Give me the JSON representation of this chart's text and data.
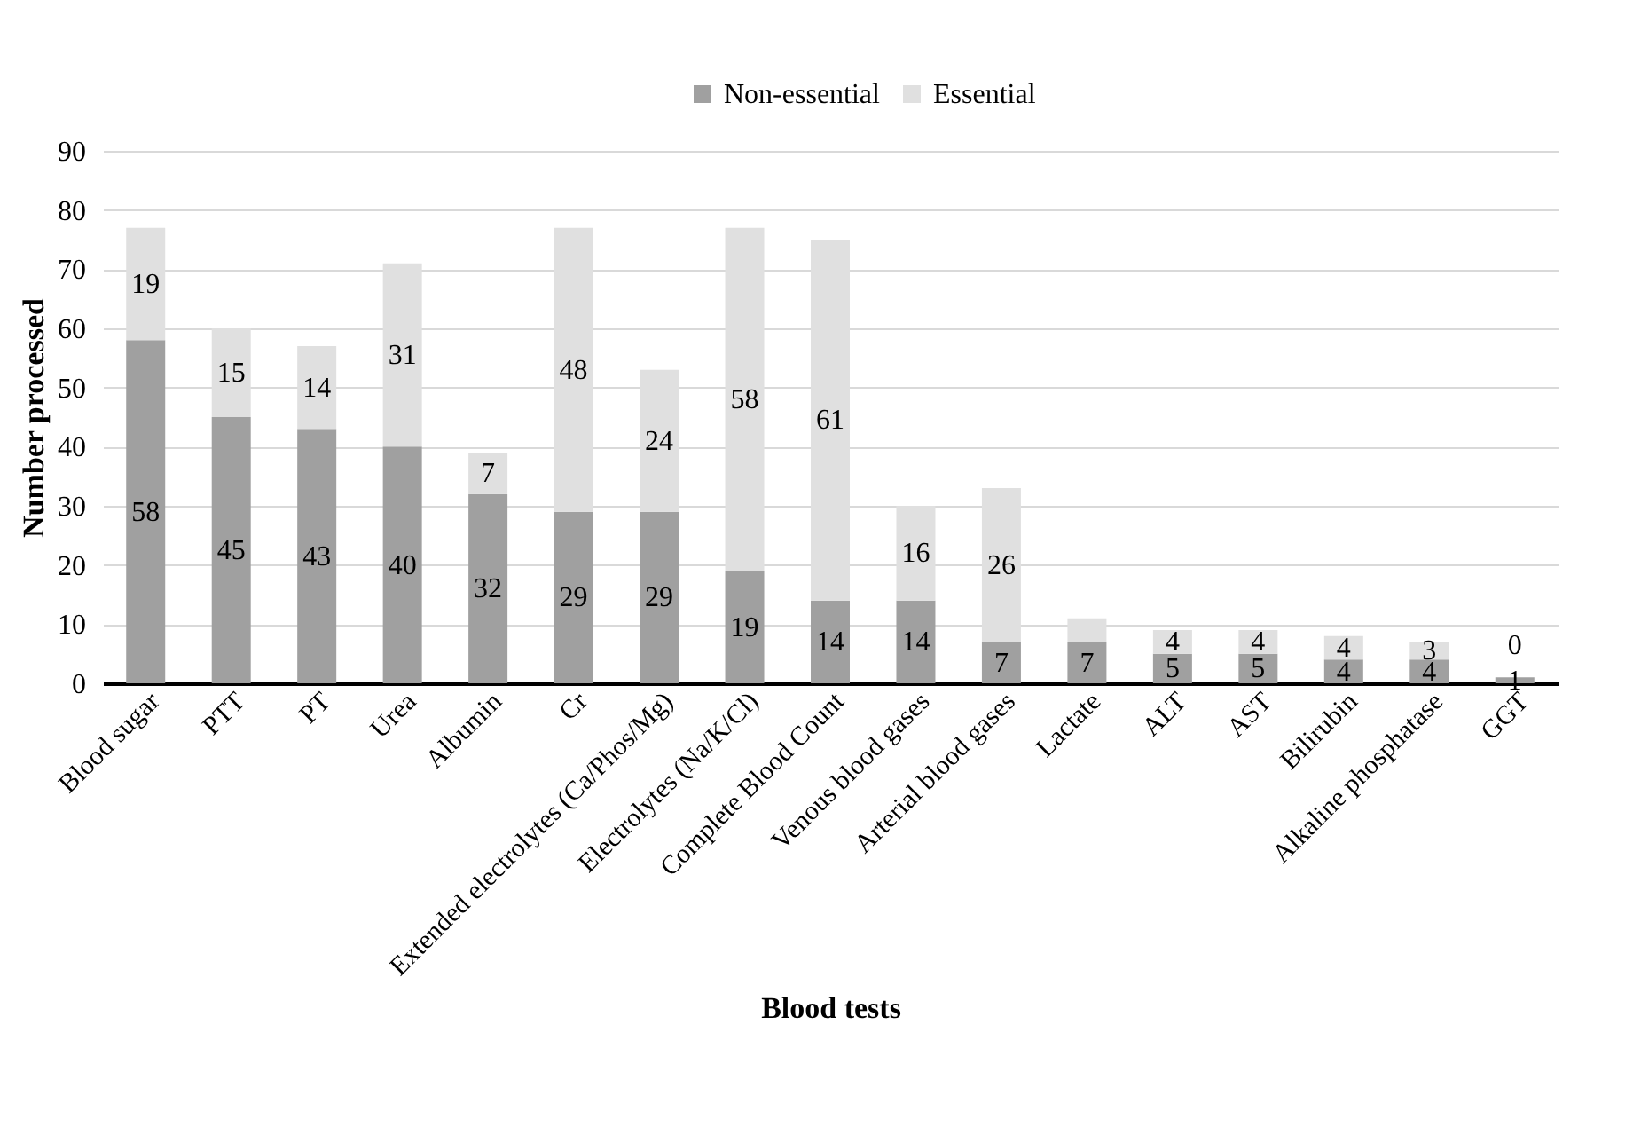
{
  "chart_data": {
    "type": "bar",
    "stacked": true,
    "xlabel": "Blood tests",
    "ylabel": "Number processed",
    "categories": [
      "Blood sugar",
      "PTT",
      "PT",
      "Urea",
      "Albumin",
      "Cr",
      "Extended electrolytes (Ca/Phos/Mg)",
      "Electrolytes (Na/K/Cl)",
      "Complete Blood Count",
      "Venous blood gases",
      "Arterial blood gases",
      "Lactate",
      "ALT",
      "AST",
      "Bilirubin",
      "Alkaline phosphatase",
      "GGT"
    ],
    "series": [
      {
        "name": "Non-essential",
        "color": "#a0a0a0",
        "values": [
          58,
          45,
          43,
          40,
          32,
          29,
          29,
          19,
          14,
          14,
          7,
          7,
          5,
          5,
          4,
          4,
          1
        ],
        "value_labels": [
          "58",
          "45",
          "43",
          "40",
          "32",
          "29",
          "29",
          "19",
          "14",
          "14",
          "7",
          "7",
          "5",
          "5",
          "4",
          "4",
          "1"
        ]
      },
      {
        "name": "Essential",
        "color": "#e0e0e0",
        "values": [
          19,
          15,
          14,
          31,
          7,
          48,
          24,
          58,
          61,
          16,
          26,
          4,
          4,
          4,
          4,
          3,
          0
        ],
        "value_labels": [
          "19",
          "15",
          "14",
          "31",
          "7",
          "48",
          "24",
          "58",
          "61",
          "16",
          "26",
          null,
          "4",
          "4",
          "4",
          "3",
          "0"
        ]
      }
    ],
    "ylim": [
      0,
      90
    ],
    "yticks": [
      0,
      10,
      20,
      30,
      40,
      50,
      60,
      70,
      80,
      90
    ],
    "grid": "y",
    "legend": "top"
  }
}
